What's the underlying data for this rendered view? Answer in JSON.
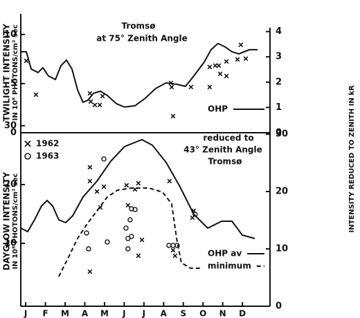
{
  "chart_data": [
    {
      "type": "line",
      "ylabel": [
        "TWILIGHT INTENSITY",
        "IN 10⁸ PHOTONS/cm² sec"
      ],
      "y2label": "INTENSITY REDUCED TO ZENITH IN kR",
      "annotations": [
        "Tromsø",
        "at 75° Zenith Angle"
      ],
      "xlim": [
        0.25,
        12.9
      ],
      "ylim": [
        0,
        12.1
      ],
      "yticks": [
        0,
        5,
        10
      ],
      "y2lim": [
        0,
        4.7
      ],
      "y2ticks": [
        0,
        1,
        2,
        3,
        4
      ],
      "series": [
        {
          "name": "OHP",
          "style": "solid",
          "color": "#111",
          "x": [
            0.25,
            0.53,
            0.78,
            1.13,
            1.37,
            1.66,
            2.01,
            2.29,
            2.57,
            2.85,
            3.13,
            3.41,
            3.66,
            3.94,
            4.29,
            4.64,
            5.1,
            5.52,
            6.05,
            6.57,
            7.1,
            7.63,
            8.16,
            8.61,
            9.03,
            9.56,
            9.91,
            10.26,
            10.62,
            10.97,
            11.32,
            11.85,
            12.27
          ],
          "values": [
            8.24,
            8.24,
            6.48,
            6.13,
            6.62,
            5.77,
            5.42,
            6.83,
            7.39,
            6.48,
            4.37,
            3.1,
            3.31,
            4.01,
            4.23,
            3.8,
            2.96,
            2.61,
            2.75,
            3.52,
            4.51,
            5.07,
            4.93,
            4.72,
            5.77,
            7.18,
            8.45,
            9.08,
            8.73,
            8.24,
            8.03,
            8.45,
            8.45
          ]
        },
        {
          "marker": "x",
          "color": "#111",
          "x": [
            0.53,
            1.02,
            3.76,
            3.8,
            4.01,
            4.26,
            4.4,
            7.87,
            7.91,
            7.98,
            8.89,
            9.84,
            9.84,
            10.12,
            10.3,
            10.37,
            10.69,
            10.69,
            11.25,
            11.42,
            11.67
          ],
          "values": [
            7.32,
            3.87,
            4.01,
            3.17,
            2.82,
            2.82,
            3.73,
            5.07,
            4.65,
            1.69,
            4.65,
            6.69,
            4.65,
            6.83,
            6.83,
            5.99,
            7.25,
            5.77,
            7.46,
            8.94,
            7.54
          ]
        }
      ]
    },
    {
      "type": "line",
      "ylabel": [
        "DAYGLOW INTENSITY",
        "IN 10⁸ PHOTONS/cm² sec"
      ],
      "annotations": [
        "reduced to",
        "43° Zenith Angle",
        "Tromsø"
      ],
      "xlim": [
        0.25,
        12.9
      ],
      "xticks": [
        {
          "value": 0.5,
          "label": "J"
        },
        {
          "value": 1.5,
          "label": "F"
        },
        {
          "value": 2.5,
          "label": "M"
        },
        {
          "value": 3.5,
          "label": "A"
        },
        {
          "value": 4.5,
          "label": "M"
        },
        {
          "value": 5.5,
          "label": "J"
        },
        {
          "value": 6.5,
          "label": "J"
        },
        {
          "value": 7.5,
          "label": "A"
        },
        {
          "value": 8.5,
          "label": "S"
        },
        {
          "value": 9.5,
          "label": "O"
        },
        {
          "value": 10.5,
          "label": "N"
        },
        {
          "value": 11.5,
          "label": "D"
        }
      ],
      "ylim": [
        -0.7,
        31.4
      ],
      "yticks": [
        10,
        20,
        30
      ],
      "y2lim": [
        0,
        32.9
      ],
      "y2ticks": [
        0,
        10,
        20,
        30
      ],
      "series": [
        {
          "name": "OHP av",
          "style": "solid",
          "color": "#111",
          "x": [
            0.25,
            0.6,
            0.95,
            1.3,
            1.59,
            1.87,
            2.18,
            2.53,
            2.89,
            3.41,
            4.12,
            4.82,
            5.52,
            6.4,
            6.93,
            7.63,
            8.33,
            9.03,
            9.74,
            10.44,
            10.97,
            11.49,
            12.13
          ],
          "values": [
            12.59,
            12.0,
            14.0,
            16.35,
            17.29,
            16.35,
            14.0,
            13.53,
            14.7,
            17.88,
            20.58,
            23.99,
            26.46,
            27.64,
            26.7,
            23.76,
            19.64,
            14.94,
            12.59,
            13.76,
            13.76,
            11.41,
            10.82
          ]
        },
        {
          "name": "minimum",
          "style": "dash",
          "color": "#111",
          "x": [
            2.18,
            2.71,
            3.13,
            3.59,
            4.12,
            4.64,
            5.17,
            5.87,
            6.75,
            7.45,
            7.91,
            8.16,
            8.4,
            8.86,
            9.39
          ],
          "values": [
            4.36,
            7.88,
            10.82,
            13.18,
            15.53,
            17.88,
            19.05,
            19.41,
            19.41,
            18.7,
            16.7,
            10.82,
            6.71,
            5.77,
            5.77
          ]
        },
        {
          "name": "1962",
          "marker": "x",
          "color": "#111",
          "x": [
            3.76,
            3.76,
            4.12,
            4.29,
            4.47,
            3.76,
            5.62,
            5.69,
            6.05,
            6.22,
            6.4,
            6.22,
            7.8,
            7.98,
            8.08,
            9.03,
            8.96
          ],
          "values": [
            22.93,
            20.58,
            18.82,
            16.11,
            19.64,
            5.18,
            19.88,
            16.47,
            19.17,
            20.23,
            10.59,
            7.88,
            20.58,
            8.83,
            7.88,
            15.53,
            14.35
          ]
        },
        {
          "name": "1963",
          "marker": "o",
          "color": "#111",
          "x": [
            3.59,
            3.69,
            4.47,
            4.64,
            5.59,
            5.69,
            5.69,
            5.87,
            5.8,
            5.87,
            6.05,
            7.77,
            7.98,
            8.19,
            9.1
          ],
          "values": [
            11.76,
            9.06,
            24.35,
            10.24,
            12.59,
            10.82,
            9.06,
            15.88,
            14.0,
            11.18,
            15.76,
            9.65,
            9.65,
            9.65,
            14.94
          ]
        }
      ]
    }
  ]
}
